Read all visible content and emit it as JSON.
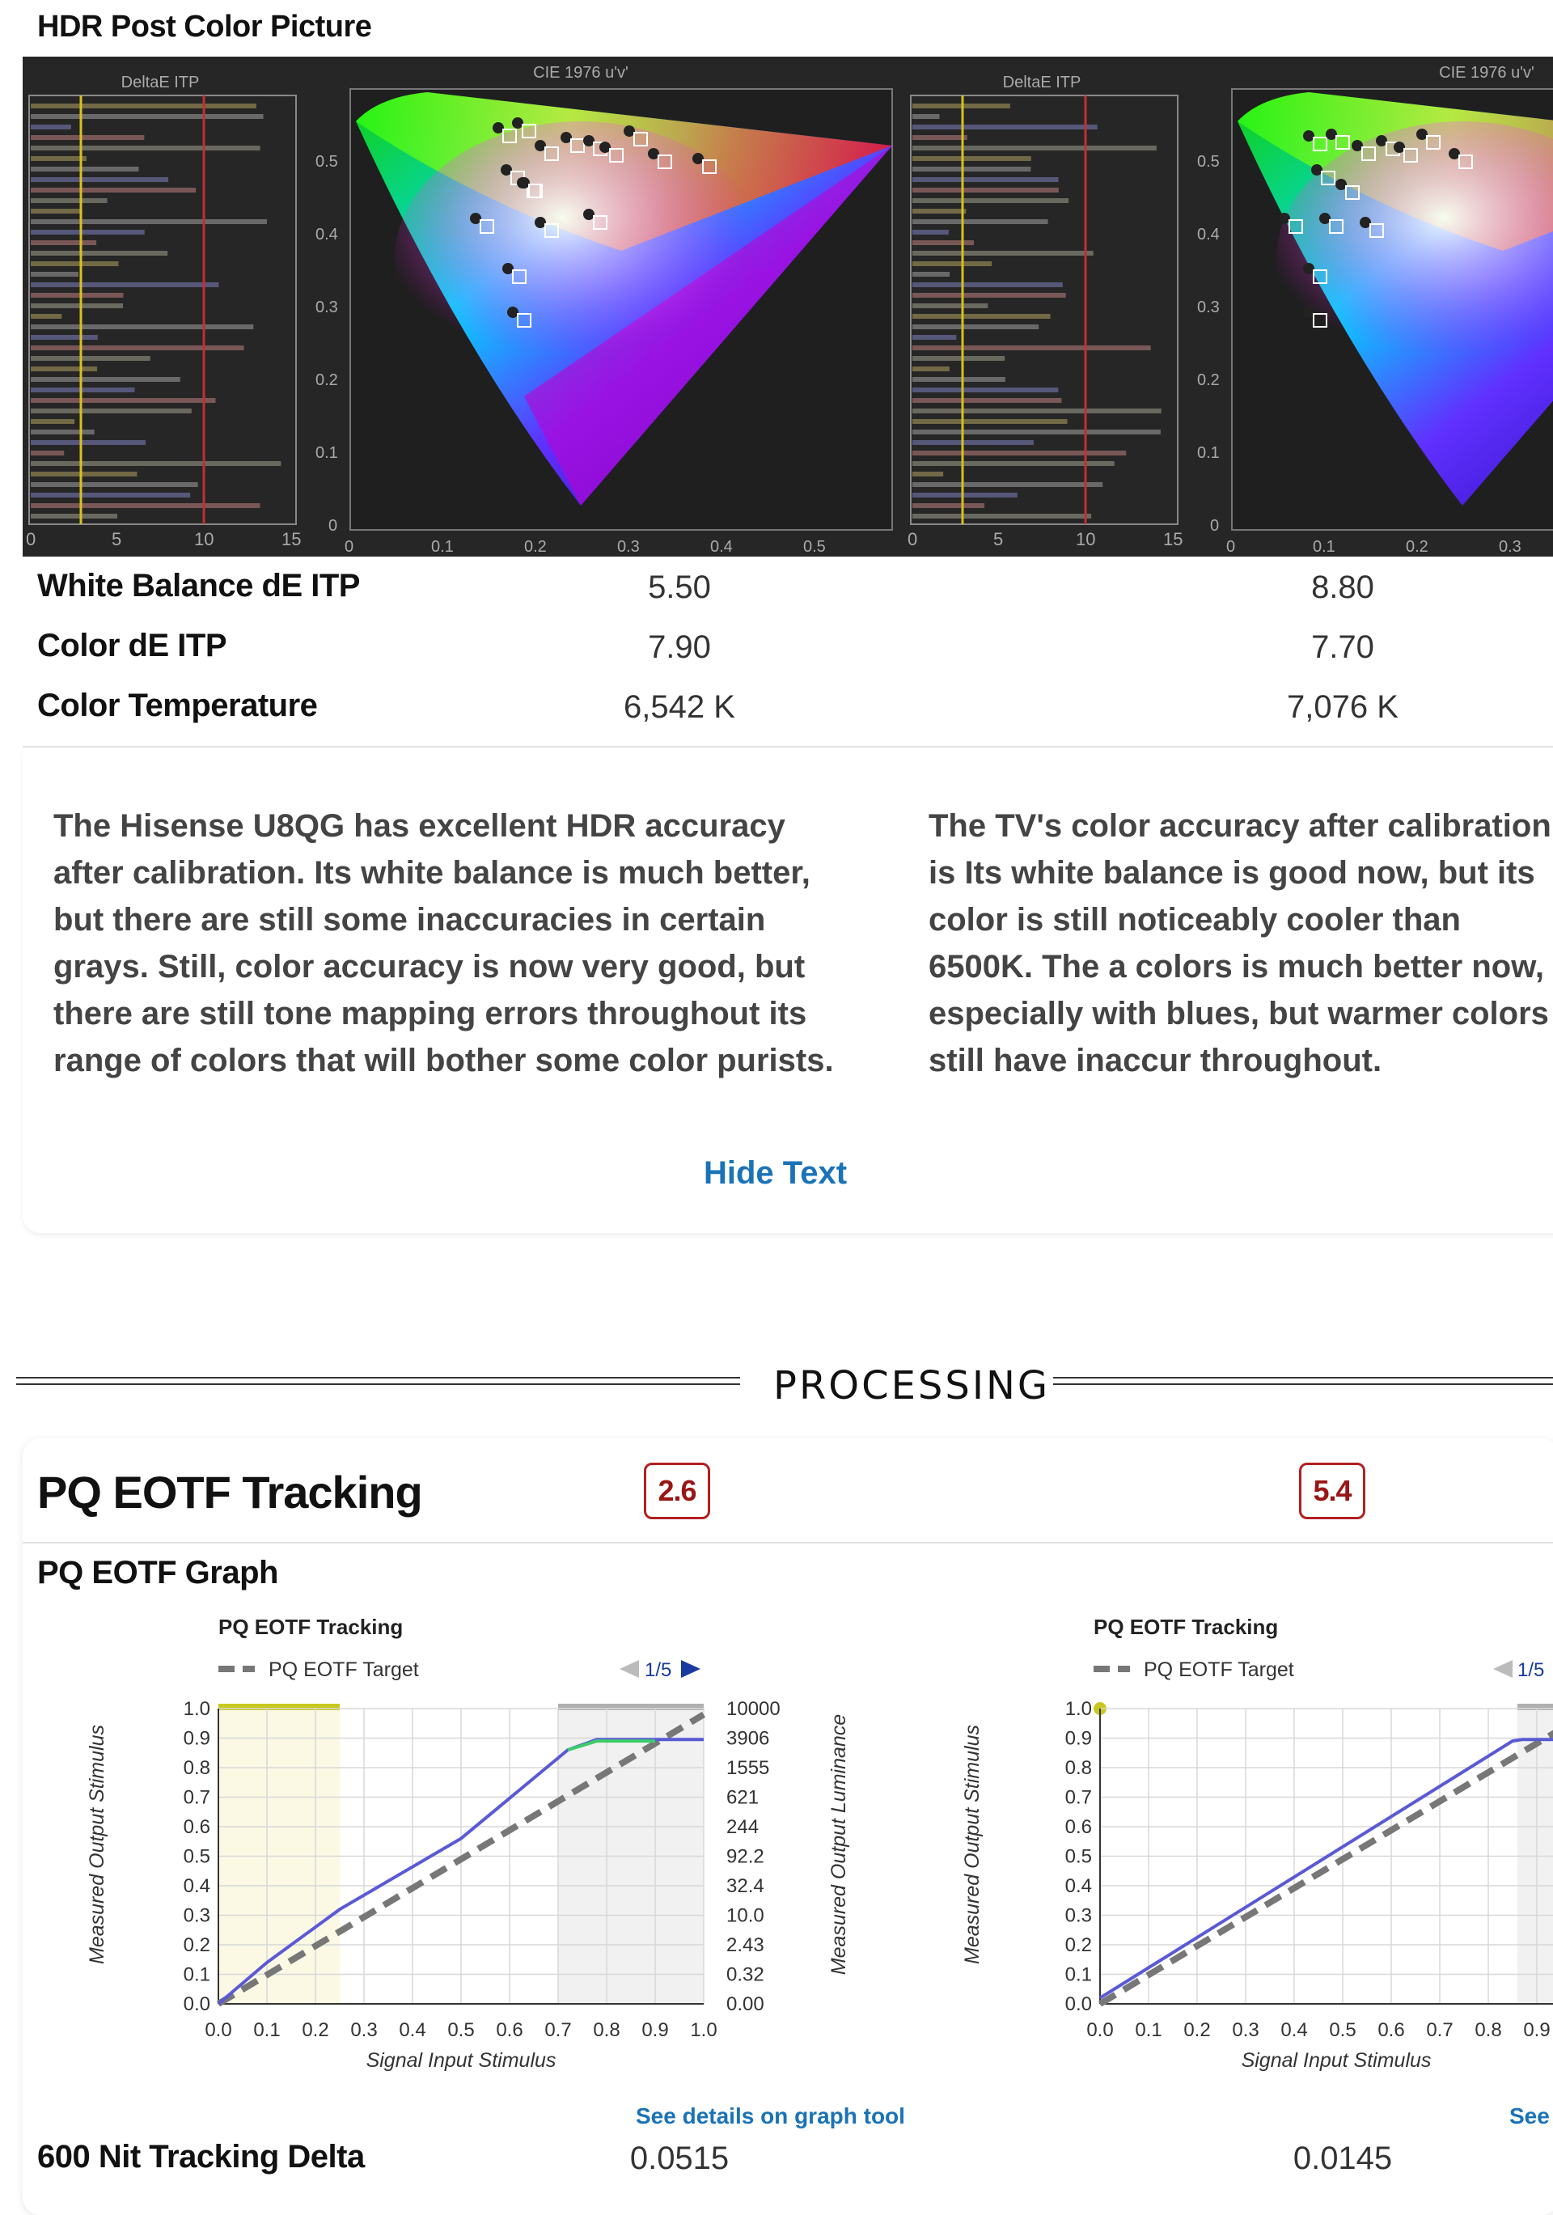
{
  "hdr_post": {
    "title": "HDR Post Color Picture",
    "panel_left": {
      "bar_title": "DeltaE ITP",
      "cie_title": "CIE 1976 u'v'"
    },
    "panel_right": {
      "bar_title": "DeltaE ITP",
      "cie_title": "CIE 1976 u'v'"
    },
    "bar_axis_ticks": [
      "0",
      "5",
      "10",
      "15"
    ],
    "cie_x_ticks": [
      "0",
      "0.1",
      "0.2",
      "0.3",
      "0.4",
      "0.5"
    ],
    "cie_y_ticks": [
      "0.5",
      "0.4",
      "0.3",
      "0.2",
      "0.1",
      "0"
    ],
    "metrics": [
      {
        "label": "White Balance dE ITP",
        "left": "5.50",
        "right": "8.80"
      },
      {
        "label": "Color dE ITP",
        "left": "7.90",
        "right": "7.70"
      },
      {
        "label": "Color Temperature",
        "left": "6,542 K",
        "right": "7,076 K"
      }
    ],
    "text_left": "The Hisense U8QG has excellent HDR accuracy after calibration. Its white balance is much better, but there are still some inaccuracies in certain grays. Still, color accuracy is now very good, but there are still tone mapping errors throughout its range of colors that will bother some color purists.",
    "text_right": "The TV's color accuracy after calibration is Its white balance is good now, but its color is still noticeably cooler than 6500K. The a colors is much better now, especially with blues, but warmer colors still have inaccur throughout.",
    "hide_text": "Hide Text"
  },
  "section_heading": "PROCESSING",
  "pq": {
    "title": "PQ EOTF Tracking",
    "score_left": "2.6",
    "score_right": "5.4",
    "graph_heading": "PQ EOTF Graph",
    "left_graph": {
      "title": "PQ EOTF Tracking",
      "legend": "PQ EOTF Target",
      "pager": "1/5",
      "y_label": "Measured Output Stimulus",
      "x_label": "Signal Input Stimulus",
      "y2_label": "Measured Output Luminance"
    },
    "right_graph": {
      "title": "PQ EOTF Tracking",
      "legend": "PQ EOTF Target",
      "pager": "1/5",
      "y_label": "Measured Output Stimulus",
      "x_label": "Signal Input Stimulus"
    },
    "details_link": "See details on graph tool",
    "details_link_right": "See",
    "delta_label": "600 Nit Tracking Delta",
    "delta_left": "0.0515",
    "delta_right": "0.0145"
  },
  "chart_data": [
    {
      "type": "line",
      "title": "PQ EOTF Tracking",
      "xlabel": "Signal Input Stimulus",
      "ylabel": "Measured Output Stimulus",
      "y2label": "Measured Output Luminance",
      "x_ticks": [
        "0.0",
        "0.1",
        "0.2",
        "0.3",
        "0.4",
        "0.5",
        "0.6",
        "0.7",
        "0.8",
        "0.9",
        "1.0"
      ],
      "y_ticks": [
        "0.0",
        "0.1",
        "0.2",
        "0.3",
        "0.4",
        "0.5",
        "0.6",
        "0.7",
        "0.8",
        "0.9",
        "1.0"
      ],
      "y2_ticks": [
        "0.00",
        "0.32",
        "2.43",
        "10.0",
        "32.4",
        "92.2",
        "244",
        "621",
        "1555",
        "3906",
        "10000"
      ],
      "xlim": [
        0,
        1
      ],
      "ylim": [
        0,
        1
      ],
      "grid": true,
      "series": [
        {
          "name": "PQ EOTF Target",
          "color": "#777777",
          "dashed": true,
          "x": [
            0,
            1
          ],
          "y": [
            0,
            0.98
          ]
        },
        {
          "color": "#5a5ad6",
          "x": [
            0,
            0.1,
            0.25,
            0.5,
            0.72,
            0.78,
            0.9,
            1.0
          ],
          "y": [
            0,
            0.14,
            0.32,
            0.56,
            0.86,
            0.895,
            0.895,
            0.895
          ]
        },
        {
          "color": "#3ccc6a",
          "x": [
            0.72,
            0.78,
            0.9
          ],
          "y": [
            0.86,
            0.89,
            0.89
          ]
        }
      ]
    },
    {
      "type": "line",
      "title": "PQ EOTF Tracking",
      "xlabel": "Signal Input Stimulus",
      "ylabel": "Measured Output Stimulus",
      "x_ticks": [
        "0.0",
        "0.1",
        "0.2",
        "0.3",
        "0.4",
        "0.5",
        "0.6",
        "0.7",
        "0.8",
        "0.9"
      ],
      "y_ticks": [
        "0.0",
        "0.1",
        "0.2",
        "0.3",
        "0.4",
        "0.5",
        "0.6",
        "0.7",
        "0.8",
        "0.9",
        "1.0"
      ],
      "xlim": [
        0,
        1
      ],
      "ylim": [
        0,
        1
      ],
      "grid": true,
      "series": [
        {
          "name": "PQ EOTF Target",
          "color": "#777777",
          "dashed": true,
          "x": [
            0,
            1
          ],
          "y": [
            0,
            0.98
          ]
        },
        {
          "color": "#5a5ad6",
          "x": [
            0,
            0.85,
            0.87,
            1.0
          ],
          "y": [
            0.02,
            0.89,
            0.895,
            0.895
          ]
        }
      ]
    }
  ]
}
